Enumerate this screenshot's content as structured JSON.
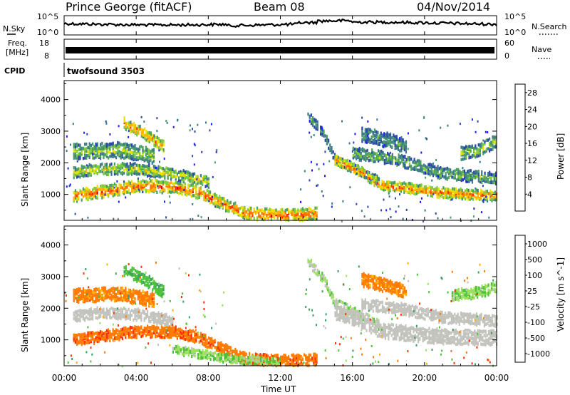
{
  "header": {
    "station": "Prince George (fitACF)",
    "beam": "Beam 08",
    "date": "04/Nov/2014"
  },
  "labels": {
    "nsky": "N.Sky",
    "freq_line1": "Freq.",
    "freq_line2": "[MHz]",
    "cpid": "CPID",
    "nsearch": "N.Search",
    "nave": "Nave",
    "mode": "twofsound 3503"
  },
  "colors": {
    "power_scale": [
      "#1e1eff",
      "#2a46a8",
      "#3c7a8a",
      "#4aa060",
      "#7fcc3a",
      "#e8e000",
      "#ffb000",
      "#ff7000",
      "#ff3000",
      "#e00000"
    ],
    "velocity_scale": [
      "#e00000",
      "#ff3000",
      "#ff7a00",
      "#ffb000",
      "#c8c8c8",
      "#c8c8c8",
      "#9be05a",
      "#4cc23a",
      "#3aa060",
      "#1e5aa0",
      "#1e3c96"
    ],
    "ground_scatter": "#c3c3bd"
  },
  "chart_data": [
    {
      "type": "line",
      "name": "noise_search",
      "ylabel_left": "N.Sky",
      "ylabel_right": "N.Search",
      "yticks_left": [
        "10^5",
        "10^0"
      ],
      "yticks_right": [
        "10^5",
        "10^0"
      ],
      "xlim": [
        0,
        24
      ]
    },
    {
      "type": "line",
      "name": "frequency_nave",
      "ylabel_left": "Freq. [MHz]",
      "ylabel_right": "Nave",
      "yticks_left": [
        18,
        8
      ],
      "yticks_right": [
        60,
        0
      ],
      "xlim": [
        0,
        24
      ]
    },
    {
      "type": "heatmap",
      "name": "power",
      "ylabel": "Slant Range [km]",
      "yticks": [
        1000,
        2000,
        3000,
        4000
      ],
      "ylim": [
        180,
        4600
      ],
      "xlim": [
        0,
        24
      ],
      "colorbar_label": "Power [dB]",
      "colorbar_ticks": [
        4,
        8,
        12,
        16,
        20,
        24,
        28
      ],
      "clim": [
        0,
        30
      ],
      "bands": [
        {
          "x": [
            0.5,
            4.0,
            6.0,
            7.5,
            8.8,
            10.0,
            12.0,
            14.0
          ],
          "y": [
            950,
            1250,
            1250,
            1050,
            700,
            400,
            330,
            380
          ],
          "width": 320,
          "value": 24
        },
        {
          "x": [
            0.5,
            2.0,
            4.0,
            6.0,
            8.0
          ],
          "y": [
            1700,
            1800,
            1800,
            1650,
            1400
          ],
          "width": 300,
          "value": 16
        },
        {
          "x": [
            0.5,
            3.0,
            5.0
          ],
          "y": [
            2350,
            2400,
            2200
          ],
          "width": 420,
          "value": 14
        },
        {
          "x": [
            3.3,
            4.5,
            5.5
          ],
          "y": [
            3250,
            2900,
            2500
          ],
          "width": 300,
          "value": 22
        },
        {
          "x": [
            13.5,
            14.4,
            15.0,
            16.5,
            17.5
          ],
          "y": [
            3500,
            2900,
            2100,
            1700,
            1400
          ],
          "width": 230,
          "value": 10
        },
        {
          "x": [
            15.0,
            16.5,
            17.5,
            19.0,
            21.0,
            24.0
          ],
          "y": [
            2100,
            1700,
            1300,
            1200,
            1050,
            950
          ],
          "width": 260,
          "value": 23
        },
        {
          "x": [
            16.0,
            18.5,
            21.0,
            24.0
          ],
          "y": [
            2300,
            2100,
            1650,
            1500
          ],
          "width": 320,
          "value": 12
        },
        {
          "x": [
            16.5,
            18.0,
            19.0
          ],
          "y": [
            2900,
            2700,
            2500
          ],
          "width": 400,
          "value": 10
        },
        {
          "x": [
            22.0,
            23.0,
            24.0
          ],
          "y": [
            2300,
            2400,
            2700
          ],
          "width": 350,
          "value": 14
        }
      ]
    },
    {
      "type": "heatmap",
      "name": "velocity",
      "xlabel": "Time UT",
      "ylabel": "Slant Range [km]",
      "yticks": [
        1000,
        2000,
        3000,
        4000
      ],
      "ylim": [
        180,
        4600
      ],
      "xlim": [
        0,
        24
      ],
      "xticks": [
        "00:00",
        "04:00",
        "08:00",
        "12:00",
        "16:00",
        "20:00",
        "00:00"
      ],
      "xtick_values": [
        0,
        4,
        8,
        12,
        16,
        20,
        24
      ],
      "colorbar_label": "Velocity [m s^-1]",
      "colorbar_ticks": [
        1000,
        500,
        100,
        25,
        -25,
        -100,
        -500,
        -1000
      ],
      "bands": [
        {
          "x": [
            0.5,
            4.0,
            6.0,
            7.5,
            8.8,
            10.0,
            12.0,
            14.0
          ],
          "y": [
            1000,
            1250,
            1250,
            1050,
            700,
            400,
            330,
            380
          ],
          "width": 300,
          "value": -200
        },
        {
          "x": [
            0.5,
            2.0,
            4.0,
            6.0
          ],
          "y": [
            1750,
            1850,
            1800,
            1600
          ],
          "width": 300,
          "value": 0
        },
        {
          "x": [
            0.5,
            3.0,
            5.0
          ],
          "y": [
            2400,
            2450,
            2250
          ],
          "width": 380,
          "value": -150
        },
        {
          "x": [
            3.3,
            4.5,
            5.5
          ],
          "y": [
            3200,
            2900,
            2500
          ],
          "width": 300,
          "value": 200
        },
        {
          "x": [
            13.5,
            14.4,
            15.0,
            16.5,
            17.5
          ],
          "y": [
            3500,
            2900,
            2150,
            1750,
            1450
          ],
          "width": 230,
          "value": 60
        },
        {
          "x": [
            15.0,
            16.5,
            17.5,
            19.0,
            21.0,
            24.0
          ],
          "y": [
            1900,
            1600,
            1300,
            1200,
            1100,
            1050
          ],
          "width": 420,
          "value": 0
        },
        {
          "x": [
            16.5,
            18.5,
            21.0,
            24.0
          ],
          "y": [
            2100,
            2000,
            1700,
            1600
          ],
          "width": 300,
          "value": 0
        },
        {
          "x": [
            16.5,
            18.0,
            19.0
          ],
          "y": [
            2900,
            2700,
            2500
          ],
          "width": 380,
          "value": -150
        },
        {
          "x": [
            21.5,
            23.0,
            24.0
          ],
          "y": [
            2400,
            2500,
            2700
          ],
          "width": 300,
          "value": 80
        },
        {
          "x": [
            6.0,
            8.5,
            10.0,
            12.0
          ],
          "y": [
            700,
            450,
            350,
            300
          ],
          "width": 220,
          "value": 90
        }
      ]
    }
  ]
}
